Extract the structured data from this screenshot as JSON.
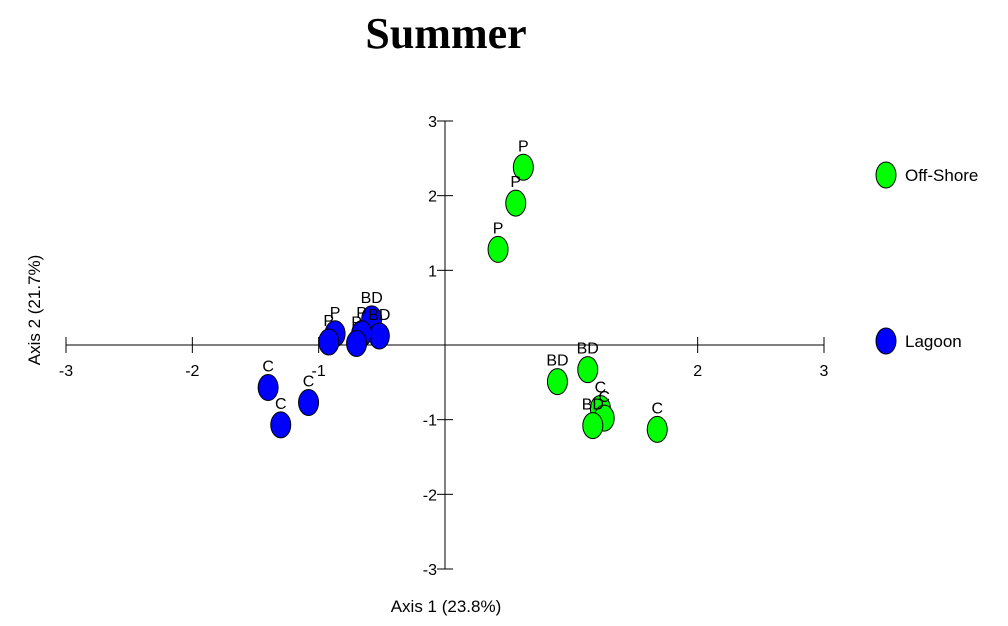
{
  "chart_data": {
    "type": "scatter",
    "title": "Summer",
    "xlabel": "Axis 1 (23.8%)",
    "ylabel": "Axis 2 (21.7%)",
    "xlim": [
      -3,
      3
    ],
    "ylim": [
      -3,
      3
    ],
    "x_ticks": [
      -3,
      -2,
      -1,
      2,
      3
    ],
    "x_tick_labels": [
      "-3",
      "-2",
      "-1",
      "2",
      "3"
    ],
    "y_ticks": [
      3,
      2,
      1,
      -1,
      -2,
      -3
    ],
    "y_tick_labels": [
      "3",
      "2",
      "1",
      "-1",
      "-2",
      "-3"
    ],
    "grid": false,
    "legend_position": "right",
    "series": [
      {
        "name": "Off-Shore",
        "color": "#00ff00",
        "points": [
          {
            "x": 0.62,
            "y": 2.38,
            "label": "P"
          },
          {
            "x": 0.56,
            "y": 1.9,
            "label": "P"
          },
          {
            "x": 0.42,
            "y": 1.28,
            "label": "P"
          },
          {
            "x": 1.13,
            "y": -0.33,
            "label": "BD"
          },
          {
            "x": 0.89,
            "y": -0.49,
            "label": "BD"
          },
          {
            "x": 1.23,
            "y": -0.85,
            "label": "C"
          },
          {
            "x": 1.26,
            "y": -0.98,
            "label": "C"
          },
          {
            "x": 1.17,
            "y": -1.08,
            "label": "BD"
          },
          {
            "x": 1.68,
            "y": -1.13,
            "label": "C"
          }
        ]
      },
      {
        "name": "Lagoon",
        "color": "#0000ff",
        "points": [
          {
            "x": -0.58,
            "y": 0.35,
            "label": "BD"
          },
          {
            "x": -0.52,
            "y": 0.12,
            "label": "BD"
          },
          {
            "x": -0.66,
            "y": 0.15,
            "label": "P"
          },
          {
            "x": -0.7,
            "y": 0.02,
            "label": "P"
          },
          {
            "x": -0.87,
            "y": 0.15,
            "label": "P"
          },
          {
            "x": -0.92,
            "y": 0.04,
            "label": "P"
          },
          {
            "x": -1.08,
            "y": -0.77,
            "label": "C"
          },
          {
            "x": -1.4,
            "y": -0.57,
            "label": "C"
          },
          {
            "x": -1.3,
            "y": -1.07,
            "label": "C"
          }
        ]
      }
    ]
  }
}
